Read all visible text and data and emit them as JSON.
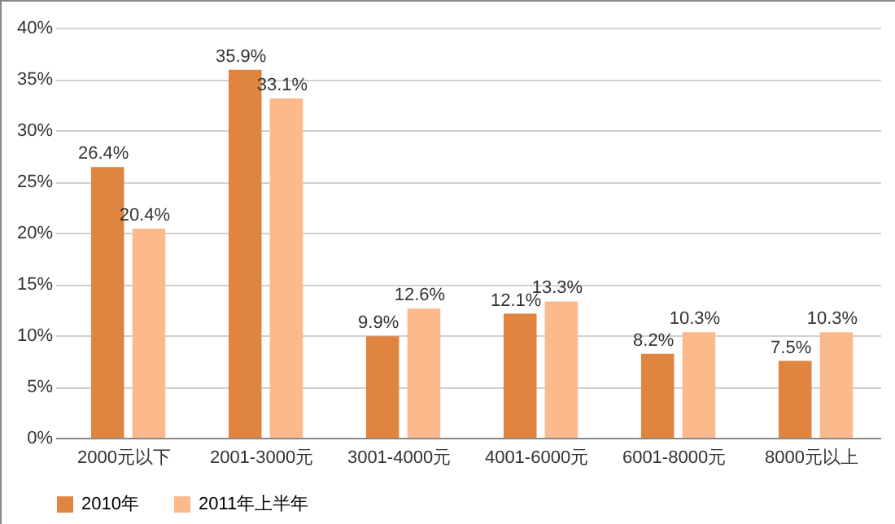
{
  "chart_data": {
    "type": "bar",
    "categories": [
      "2000元以下",
      "2001-3000元",
      "3001-4000元",
      "4001-6000元",
      "6001-8000元",
      "8000元以上"
    ],
    "series": [
      {
        "name": "2010年",
        "color": "#e0853f",
        "values": [
          26.4,
          35.9,
          9.9,
          12.1,
          8.2,
          7.5
        ],
        "value_labels": [
          "26.4%",
          "35.9%",
          "9.9%",
          "12.1%",
          "8.2%",
          "7.5%"
        ]
      },
      {
        "name": "2011年上半年",
        "color": "#fbb98c",
        "values": [
          20.4,
          33.1,
          12.6,
          13.3,
          10.3,
          10.3
        ],
        "value_labels": [
          "20.4%",
          "33.1%",
          "12.6%",
          "13.3%",
          "10.3%",
          "10.3%"
        ]
      }
    ],
    "ylim": [
      0,
      40
    ],
    "yticks": [
      {
        "value": 0,
        "label": "0%"
      },
      {
        "value": 5,
        "label": "5%"
      },
      {
        "value": 10,
        "label": "10%"
      },
      {
        "value": 15,
        "label": "15%"
      },
      {
        "value": 20,
        "label": "20%"
      },
      {
        "value": 25,
        "label": "25%"
      },
      {
        "value": 30,
        "label": "30%"
      },
      {
        "value": 35,
        "label": "35%"
      },
      {
        "value": 40,
        "label": "40%"
      }
    ],
    "grid": true,
    "legend": "bottom"
  }
}
